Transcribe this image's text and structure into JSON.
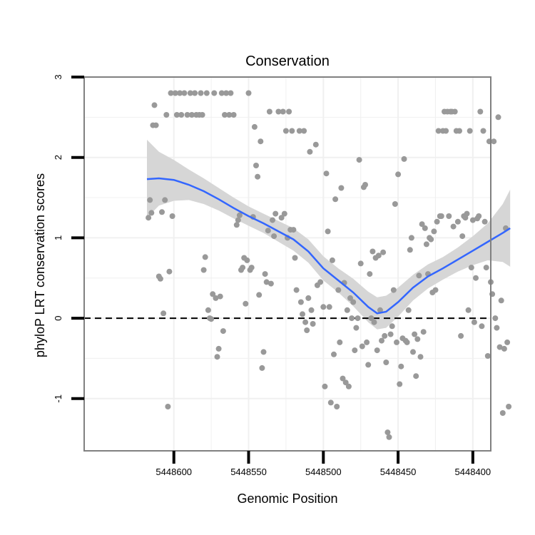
{
  "chart_data": {
    "type": "scatter",
    "title": "Conservation",
    "xlabel": "Genomic Position",
    "ylabel": "phyloP LRT conservation scores",
    "xlim": [
      5448660,
      5448388
    ],
    "ylim": [
      -1.65,
      3.0
    ],
    "x_reversed": true,
    "x_ticks": [
      5448600,
      5448550,
      5448500,
      5448450,
      5448400
    ],
    "x_tick_labels": [
      "5448600",
      "5448550",
      "5448500",
      "5448450",
      "5448400"
    ],
    "y_ticks": [
      -1,
      0,
      1,
      2,
      3
    ],
    "y_tick_labels": [
      "-1",
      "0",
      "1",
      "2",
      "3"
    ],
    "reference_line": {
      "y": 0,
      "style": "dashed"
    },
    "colors": {
      "points": "#999999",
      "smooth": "#3366ff",
      "band": "#d6d6d6",
      "frame": "#808080",
      "grid": "#f0f0f0"
    },
    "points": [
      {
        "x": 5448617,
        "y": 1.25
      },
      {
        "x": 5448616,
        "y": 1.47
      },
      {
        "x": 5448615,
        "y": 1.31
      },
      {
        "x": 5448614,
        "y": 2.4
      },
      {
        "x": 5448613,
        "y": 2.65
      },
      {
        "x": 5448612,
        "y": 2.4
      },
      {
        "x": 5448610,
        "y": 0.52
      },
      {
        "x": 5448609,
        "y": 0.49
      },
      {
        "x": 5448608,
        "y": 1.32
      },
      {
        "x": 5448607,
        "y": 0.06
      },
      {
        "x": 5448606,
        "y": 1.47
      },
      {
        "x": 5448605,
        "y": 2.53
      },
      {
        "x": 5448604,
        "y": -1.1
      },
      {
        "x": 5448603,
        "y": 0.58
      },
      {
        "x": 5448602,
        "y": 2.8
      },
      {
        "x": 5448601,
        "y": 1.27
      },
      {
        "x": 5448599,
        "y": 2.8
      },
      {
        "x": 5448598,
        "y": 2.53
      },
      {
        "x": 5448596,
        "y": 2.8
      },
      {
        "x": 5448595,
        "y": 2.53
      },
      {
        "x": 5448593,
        "y": 2.8
      },
      {
        "x": 5448591,
        "y": 2.53
      },
      {
        "x": 5448589,
        "y": 2.8
      },
      {
        "x": 5448588,
        "y": 2.53
      },
      {
        "x": 5448586,
        "y": 2.8
      },
      {
        "x": 5448585,
        "y": 2.53
      },
      {
        "x": 5448583,
        "y": 2.53
      },
      {
        "x": 5448582,
        "y": 2.8
      },
      {
        "x": 5448581,
        "y": 2.53
      },
      {
        "x": 5448580,
        "y": 0.6
      },
      {
        "x": 5448579,
        "y": 0.76
      },
      {
        "x": 5448578,
        "y": 2.8
      },
      {
        "x": 5448577,
        "y": 0.1
      },
      {
        "x": 5448576,
        "y": 0.0
      },
      {
        "x": 5448575,
        "y": -0.01
      },
      {
        "x": 5448574,
        "y": 0.3
      },
      {
        "x": 5448573,
        "y": 2.8
      },
      {
        "x": 5448572,
        "y": 0.25
      },
      {
        "x": 5448571,
        "y": -0.48
      },
      {
        "x": 5448570,
        "y": -0.38
      },
      {
        "x": 5448569,
        "y": 0.27
      },
      {
        "x": 5448568,
        "y": 2.8
      },
      {
        "x": 5448567,
        "y": -0.16
      },
      {
        "x": 5448566,
        "y": 2.53
      },
      {
        "x": 5448565,
        "y": 2.8
      },
      {
        "x": 5448563,
        "y": 2.53
      },
      {
        "x": 5448562,
        "y": 2.8
      },
      {
        "x": 5448560,
        "y": 2.53
      },
      {
        "x": 5448558,
        "y": 1.16
      },
      {
        "x": 5448557,
        "y": 1.22
      },
      {
        "x": 5448556,
        "y": 1.28
      },
      {
        "x": 5448555,
        "y": 0.6
      },
      {
        "x": 5448554,
        "y": 0.63
      },
      {
        "x": 5448553,
        "y": 0.75
      },
      {
        "x": 5448552,
        "y": 0.18
      },
      {
        "x": 5448551,
        "y": 0.72
      },
      {
        "x": 5448550,
        "y": 2.8
      },
      {
        "x": 5448549,
        "y": 0.6
      },
      {
        "x": 5448548,
        "y": 0.63
      },
      {
        "x": 5448547,
        "y": 1.26
      },
      {
        "x": 5448546,
        "y": 2.38
      },
      {
        "x": 5448545,
        "y": 1.9
      },
      {
        "x": 5448544,
        "y": 1.76
      },
      {
        "x": 5448543,
        "y": 0.29
      },
      {
        "x": 5448542,
        "y": 2.2
      },
      {
        "x": 5448541,
        "y": -0.62
      },
      {
        "x": 5448540,
        "y": -0.42
      },
      {
        "x": 5448539,
        "y": 0.55
      },
      {
        "x": 5448538,
        "y": 0.45
      },
      {
        "x": 5448537,
        "y": 1.09
      },
      {
        "x": 5448536,
        "y": 2.57
      },
      {
        "x": 5448535,
        "y": 0.43
      },
      {
        "x": 5448534,
        "y": 1.22
      },
      {
        "x": 5448533,
        "y": 1.02
      },
      {
        "x": 5448532,
        "y": 1.3
      },
      {
        "x": 5448530,
        "y": 2.57
      },
      {
        "x": 5448528,
        "y": 1.25
      },
      {
        "x": 5448527,
        "y": 2.57
      },
      {
        "x": 5448526,
        "y": 1.3
      },
      {
        "x": 5448525,
        "y": 2.33
      },
      {
        "x": 5448524,
        "y": 1.0
      },
      {
        "x": 5448523,
        "y": 2.57
      },
      {
        "x": 5448522,
        "y": 1.1
      },
      {
        "x": 5448521,
        "y": 2.33
      },
      {
        "x": 5448520,
        "y": 1.1
      },
      {
        "x": 5448519,
        "y": 0.75
      },
      {
        "x": 5448518,
        "y": 0.35
      },
      {
        "x": 5448516,
        "y": 2.33
      },
      {
        "x": 5448515,
        "y": 0.2
      },
      {
        "x": 5448514,
        "y": 0.05
      },
      {
        "x": 5448513,
        "y": 2.33
      },
      {
        "x": 5448512,
        "y": -0.05
      },
      {
        "x": 5448511,
        "y": -0.15
      },
      {
        "x": 5448510,
        "y": 0.25
      },
      {
        "x": 5448509,
        "y": 2.07
      },
      {
        "x": 5448508,
        "y": 0.1
      },
      {
        "x": 5448507,
        "y": -0.07
      },
      {
        "x": 5448505,
        "y": 2.16
      },
      {
        "x": 5448504,
        "y": 0.41
      },
      {
        "x": 5448502,
        "y": 0.45
      },
      {
        "x": 5448500,
        "y": 0.14
      },
      {
        "x": 5448499,
        "y": -0.85
      },
      {
        "x": 5448498,
        "y": 1.8
      },
      {
        "x": 5448497,
        "y": 1.08
      },
      {
        "x": 5448496,
        "y": 0.14
      },
      {
        "x": 5448495,
        "y": -1.05
      },
      {
        "x": 5448494,
        "y": 0.72
      },
      {
        "x": 5448493,
        "y": -0.45
      },
      {
        "x": 5448492,
        "y": 1.48
      },
      {
        "x": 5448491,
        "y": -1.1
      },
      {
        "x": 5448490,
        "y": 0.35
      },
      {
        "x": 5448489,
        "y": -0.3
      },
      {
        "x": 5448488,
        "y": 1.62
      },
      {
        "x": 5448487,
        "y": -0.75
      },
      {
        "x": 5448486,
        "y": 0.44
      },
      {
        "x": 5448485,
        "y": -0.8
      },
      {
        "x": 5448484,
        "y": 0.1
      },
      {
        "x": 5448483,
        "y": -0.85
      },
      {
        "x": 5448482,
        "y": 0.25
      },
      {
        "x": 5448481,
        "y": 0.0
      },
      {
        "x": 5448480,
        "y": 0.2
      },
      {
        "x": 5448479,
        "y": -0.4
      },
      {
        "x": 5448478,
        "y": -0.12
      },
      {
        "x": 5448477,
        "y": 0.0
      },
      {
        "x": 5448476,
        "y": 1.97
      },
      {
        "x": 5448475,
        "y": 0.68
      },
      {
        "x": 5448474,
        "y": -0.35
      },
      {
        "x": 5448473,
        "y": 1.63
      },
      {
        "x": 5448472,
        "y": 1.66
      },
      {
        "x": 5448471,
        "y": -0.3
      },
      {
        "x": 5448470,
        "y": -0.58
      },
      {
        "x": 5448469,
        "y": 0.55
      },
      {
        "x": 5448468,
        "y": 0.0
      },
      {
        "x": 5448467,
        "y": 0.83
      },
      {
        "x": 5448466,
        "y": -0.05
      },
      {
        "x": 5448465,
        "y": 0.75
      },
      {
        "x": 5448464,
        "y": -0.4
      },
      {
        "x": 5448463,
        "y": 0.78
      },
      {
        "x": 5448462,
        "y": 0.1
      },
      {
        "x": 5448461,
        "y": -0.28
      },
      {
        "x": 5448460,
        "y": 0.82
      },
      {
        "x": 5448459,
        "y": -0.22
      },
      {
        "x": 5448458,
        "y": -0.55
      },
      {
        "x": 5448457,
        "y": -1.42
      },
      {
        "x": 5448456,
        "y": -1.48
      },
      {
        "x": 5448455,
        "y": -0.2
      },
      {
        "x": 5448454,
        "y": -0.1
      },
      {
        "x": 5448453,
        "y": 0.35
      },
      {
        "x": 5448452,
        "y": 1.42
      },
      {
        "x": 5448451,
        "y": -0.3
      },
      {
        "x": 5448450,
        "y": 1.79
      },
      {
        "x": 5448449,
        "y": -0.82
      },
      {
        "x": 5448448,
        "y": -0.6
      },
      {
        "x": 5448447,
        "y": -0.25
      },
      {
        "x": 5448446,
        "y": 1.98
      },
      {
        "x": 5448445,
        "y": -0.28
      },
      {
        "x": 5448444,
        "y": -0.3
      },
      {
        "x": 5448443,
        "y": 0.1
      },
      {
        "x": 5448442,
        "y": 0.85
      },
      {
        "x": 5448441,
        "y": 1.0
      },
      {
        "x": 5448440,
        "y": -0.42
      },
      {
        "x": 5448439,
        "y": -0.2
      },
      {
        "x": 5448438,
        "y": -0.72
      },
      {
        "x": 5448437,
        "y": -0.26
      },
      {
        "x": 5448436,
        "y": 0.53
      },
      {
        "x": 5448435,
        "y": -0.48
      },
      {
        "x": 5448434,
        "y": 1.17
      },
      {
        "x": 5448433,
        "y": -0.17
      },
      {
        "x": 5448432,
        "y": 1.12
      },
      {
        "x": 5448431,
        "y": 0.92
      },
      {
        "x": 5448430,
        "y": 0.55
      },
      {
        "x": 5448429,
        "y": 1.0
      },
      {
        "x": 5448428,
        "y": 0.98
      },
      {
        "x": 5448427,
        "y": 0.32
      },
      {
        "x": 5448426,
        "y": 1.08
      },
      {
        "x": 5448425,
        "y": 0.35
      },
      {
        "x": 5448424,
        "y": 1.2
      },
      {
        "x": 5448423,
        "y": 2.33
      },
      {
        "x": 5448422,
        "y": 1.27
      },
      {
        "x": 5448421,
        "y": 1.27
      },
      {
        "x": 5448420,
        "y": 2.33
      },
      {
        "x": 5448419,
        "y": 2.57
      },
      {
        "x": 5448418,
        "y": 2.33
      },
      {
        "x": 5448417,
        "y": 2.57
      },
      {
        "x": 5448416,
        "y": 1.27
      },
      {
        "x": 5448415,
        "y": 2.57
      },
      {
        "x": 5448414,
        "y": 2.57
      },
      {
        "x": 5448413,
        "y": 1.14
      },
      {
        "x": 5448412,
        "y": 2.57
      },
      {
        "x": 5448411,
        "y": 2.33
      },
      {
        "x": 5448410,
        "y": 1.2
      },
      {
        "x": 5448409,
        "y": 2.33
      },
      {
        "x": 5448408,
        "y": -0.22
      },
      {
        "x": 5448407,
        "y": 1.02
      },
      {
        "x": 5448406,
        "y": 1.27
      },
      {
        "x": 5448405,
        "y": 1.25
      },
      {
        "x": 5448404,
        "y": 1.3
      },
      {
        "x": 5448403,
        "y": 0.1
      },
      {
        "x": 5448402,
        "y": 2.33
      },
      {
        "x": 5448401,
        "y": 0.63
      },
      {
        "x": 5448400,
        "y": 1.22
      },
      {
        "x": 5448399,
        "y": -0.05
      },
      {
        "x": 5448398,
        "y": 0.5
      },
      {
        "x": 5448397,
        "y": 1.24
      },
      {
        "x": 5448396,
        "y": 1.27
      },
      {
        "x": 5448395,
        "y": 2.57
      },
      {
        "x": 5448394,
        "y": -0.1
      },
      {
        "x": 5448393,
        "y": 2.33
      },
      {
        "x": 5448392,
        "y": 1.2
      },
      {
        "x": 5448391,
        "y": 0.63
      },
      {
        "x": 5448390,
        "y": -0.47
      },
      {
        "x": 5448389,
        "y": 2.2
      },
      {
        "x": 5448388,
        "y": 0.45
      },
      {
        "x": 5448387,
        "y": 0.3
      },
      {
        "x": 5448386,
        "y": 2.2
      },
      {
        "x": 5448385,
        "y": 0.0
      },
      {
        "x": 5448384,
        "y": -0.12
      },
      {
        "x": 5448383,
        "y": 2.5
      },
      {
        "x": 5448382,
        "y": -0.36
      },
      {
        "x": 5448381,
        "y": 0.22
      },
      {
        "x": 5448380,
        "y": -1.18
      },
      {
        "x": 5448379,
        "y": -0.38
      },
      {
        "x": 5448378,
        "y": 1.12
      },
      {
        "x": 5448377,
        "y": -0.3
      },
      {
        "x": 5448376,
        "y": -1.1
      }
    ],
    "smooth_line": [
      {
        "x": 5448618,
        "y": 1.73
      },
      {
        "x": 5448610,
        "y": 1.74
      },
      {
        "x": 5448600,
        "y": 1.72
      },
      {
        "x": 5448590,
        "y": 1.66
      },
      {
        "x": 5448580,
        "y": 1.58
      },
      {
        "x": 5448570,
        "y": 1.48
      },
      {
        "x": 5448560,
        "y": 1.37
      },
      {
        "x": 5448550,
        "y": 1.27
      },
      {
        "x": 5448540,
        "y": 1.18
      },
      {
        "x": 5448530,
        "y": 1.08
      },
      {
        "x": 5448520,
        "y": 0.98
      },
      {
        "x": 5448510,
        "y": 0.83
      },
      {
        "x": 5448500,
        "y": 0.62
      },
      {
        "x": 5448490,
        "y": 0.47
      },
      {
        "x": 5448480,
        "y": 0.32
      },
      {
        "x": 5448470,
        "y": 0.14
      },
      {
        "x": 5448464,
        "y": 0.06
      },
      {
        "x": 5448458,
        "y": 0.08
      },
      {
        "x": 5448450,
        "y": 0.2
      },
      {
        "x": 5448440,
        "y": 0.38
      },
      {
        "x": 5448430,
        "y": 0.52
      },
      {
        "x": 5448420,
        "y": 0.62
      },
      {
        "x": 5448410,
        "y": 0.73
      },
      {
        "x": 5448400,
        "y": 0.84
      },
      {
        "x": 5448390,
        "y": 0.95
      },
      {
        "x": 5448380,
        "y": 1.06
      },
      {
        "x": 5448375,
        "y": 1.12
      }
    ],
    "confidence_band": [
      {
        "x": 5448618,
        "lower": 1.25,
        "upper": 2.22
      },
      {
        "x": 5448610,
        "lower": 1.4,
        "upper": 2.07
      },
      {
        "x": 5448600,
        "lower": 1.46,
        "upper": 1.97
      },
      {
        "x": 5448590,
        "lower": 1.47,
        "upper": 1.85
      },
      {
        "x": 5448580,
        "lower": 1.42,
        "upper": 1.74
      },
      {
        "x": 5448570,
        "lower": 1.34,
        "upper": 1.62
      },
      {
        "x": 5448560,
        "lower": 1.24,
        "upper": 1.5
      },
      {
        "x": 5448550,
        "lower": 1.15,
        "upper": 1.39
      },
      {
        "x": 5448540,
        "lower": 1.06,
        "upper": 1.3
      },
      {
        "x": 5448530,
        "lower": 0.95,
        "upper": 1.21
      },
      {
        "x": 5448520,
        "lower": 0.84,
        "upper": 1.12
      },
      {
        "x": 5448510,
        "lower": 0.69,
        "upper": 0.98
      },
      {
        "x": 5448500,
        "lower": 0.47,
        "upper": 0.77
      },
      {
        "x": 5448490,
        "lower": 0.32,
        "upper": 0.62
      },
      {
        "x": 5448480,
        "lower": 0.15,
        "upper": 0.49
      },
      {
        "x": 5448470,
        "lower": -0.05,
        "upper": 0.33
      },
      {
        "x": 5448464,
        "lower": -0.14,
        "upper": 0.26
      },
      {
        "x": 5448458,
        "lower": -0.12,
        "upper": 0.28
      },
      {
        "x": 5448450,
        "lower": 0.02,
        "upper": 0.38
      },
      {
        "x": 5448440,
        "lower": 0.22,
        "upper": 0.54
      },
      {
        "x": 5448430,
        "lower": 0.37,
        "upper": 0.67
      },
      {
        "x": 5448420,
        "lower": 0.48,
        "upper": 0.76
      },
      {
        "x": 5448410,
        "lower": 0.58,
        "upper": 0.88
      },
      {
        "x": 5448400,
        "lower": 0.66,
        "upper": 1.02
      },
      {
        "x": 5448390,
        "lower": 0.72,
        "upper": 1.18
      },
      {
        "x": 5448380,
        "lower": 0.7,
        "upper": 1.42
      },
      {
        "x": 5448375,
        "lower": 0.64,
        "upper": 1.6
      }
    ]
  }
}
